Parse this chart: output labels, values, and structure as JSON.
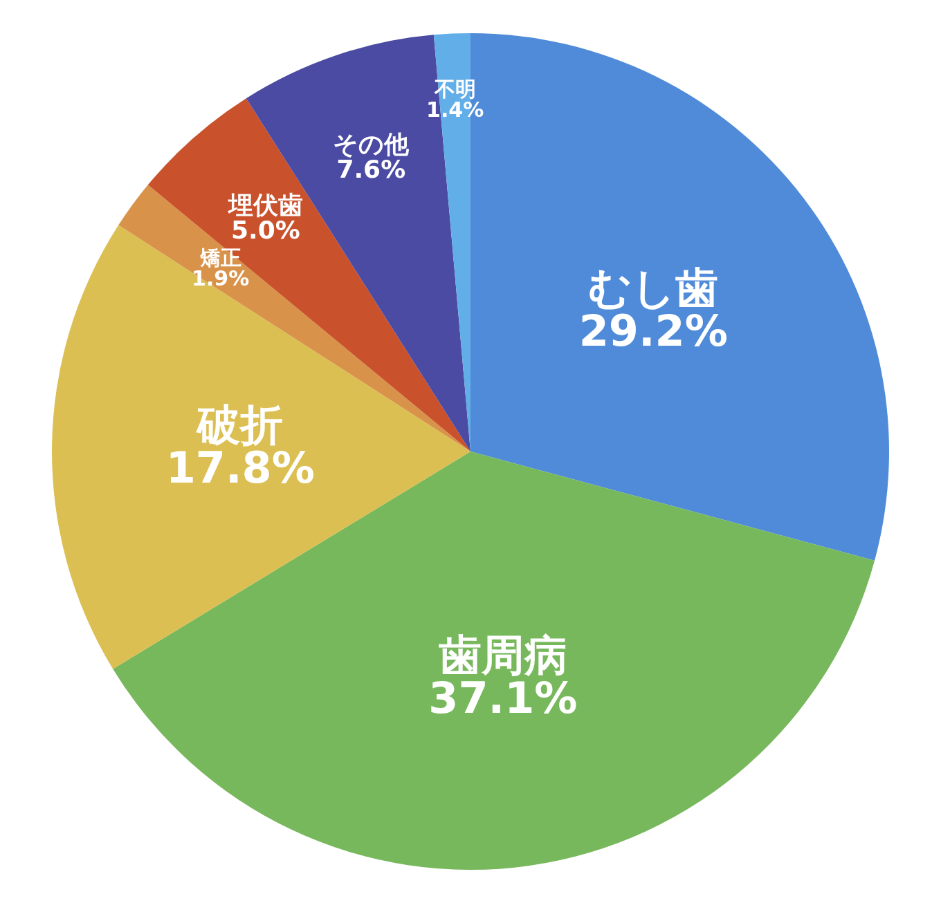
{
  "chart_data": {
    "type": "pie",
    "categories": [
      "むし歯",
      "歯周病",
      "破折",
      "矯正",
      "埋伏歯",
      "その他",
      "不明"
    ],
    "values": [
      29.2,
      37.1,
      17.8,
      1.9,
      5.0,
      7.6,
      1.4
    ],
    "value_labels": [
      "29.2%",
      "37.1%",
      "17.8%",
      "1.9%",
      "5.0%",
      "7.6%",
      "1.4%"
    ],
    "colors": [
      "#4f8bd8",
      "#78b85c",
      "#dcbf52",
      "#d8924a",
      "#c9522c",
      "#4b4ba3",
      "#62aee8"
    ]
  }
}
